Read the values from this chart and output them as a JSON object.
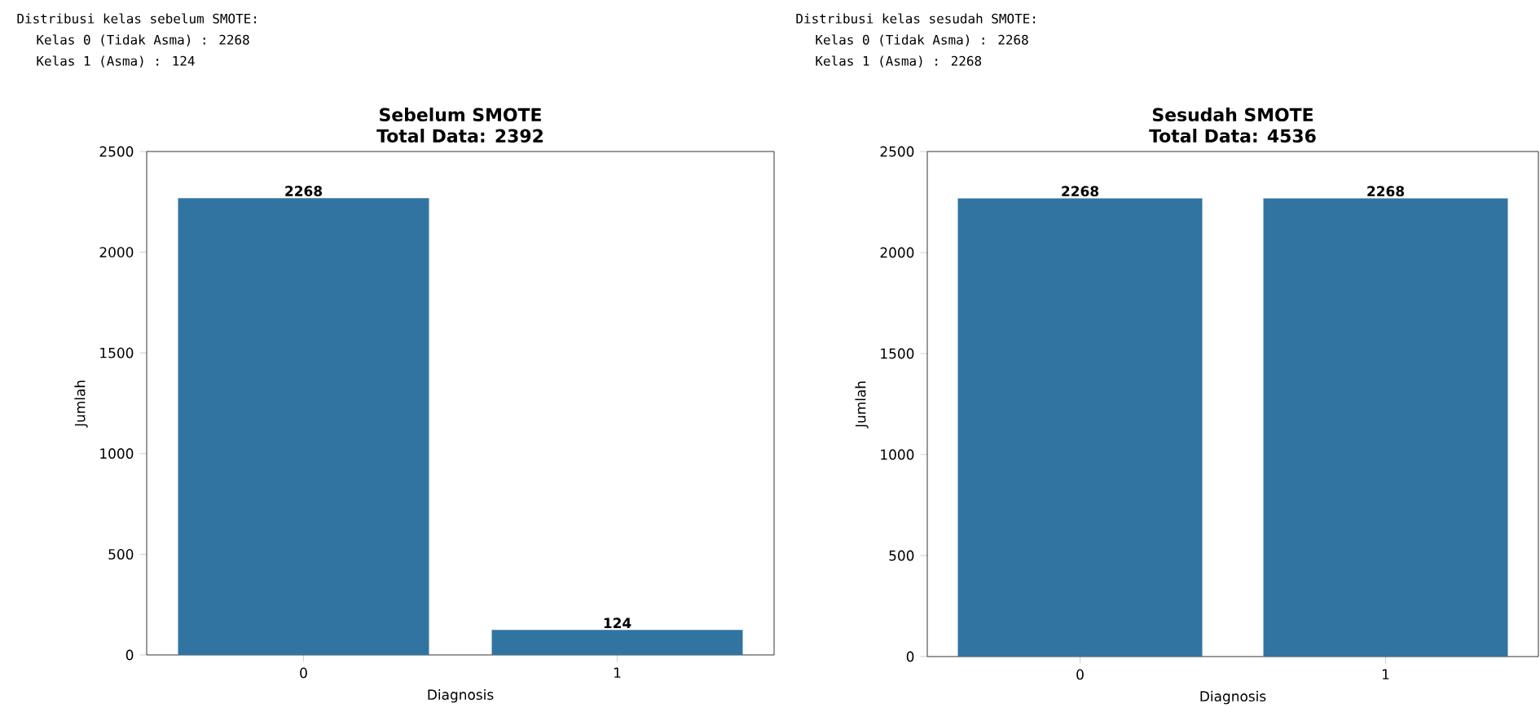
{
  "chart_data": [
    {
      "type": "bar",
      "title": "Sebelum SMOTE",
      "subtitle": "Total Data: 2392",
      "annotations": [
        "Distribusi kelas sebelum SMOTE:",
        "Kelas 0 (Tidak Asma) : 2268",
        "Kelas 1 (Asma) : 124"
      ],
      "categories": [
        "0",
        "1"
      ],
      "values": [
        2268,
        124
      ],
      "color": "#3274a1",
      "xlabel": "Diagnosis",
      "ylabel": "Jumlah",
      "ylim": [
        0,
        2500
      ],
      "yticks": [
        0,
        500,
        1000,
        1500,
        2000,
        2500
      ],
      "data_labels": true
    },
    {
      "type": "bar",
      "title": "Sesudah SMOTE",
      "subtitle": "Total Data: 4536",
      "annotations": [
        "Distribusi kelas sesudah SMOTE:",
        "Kelas 0 (Tidak Asma) : 2268",
        "Kelas 1 (Asma) : 2268"
      ],
      "categories": [
        "0",
        "1"
      ],
      "values": [
        2268,
        2268
      ],
      "color": "#3274a1",
      "xlabel": "Diagnosis",
      "ylabel": "Jumlah",
      "ylim": [
        0,
        2500
      ],
      "yticks": [
        0,
        500,
        1000,
        1500,
        2000,
        2500
      ],
      "data_labels": true
    }
  ]
}
